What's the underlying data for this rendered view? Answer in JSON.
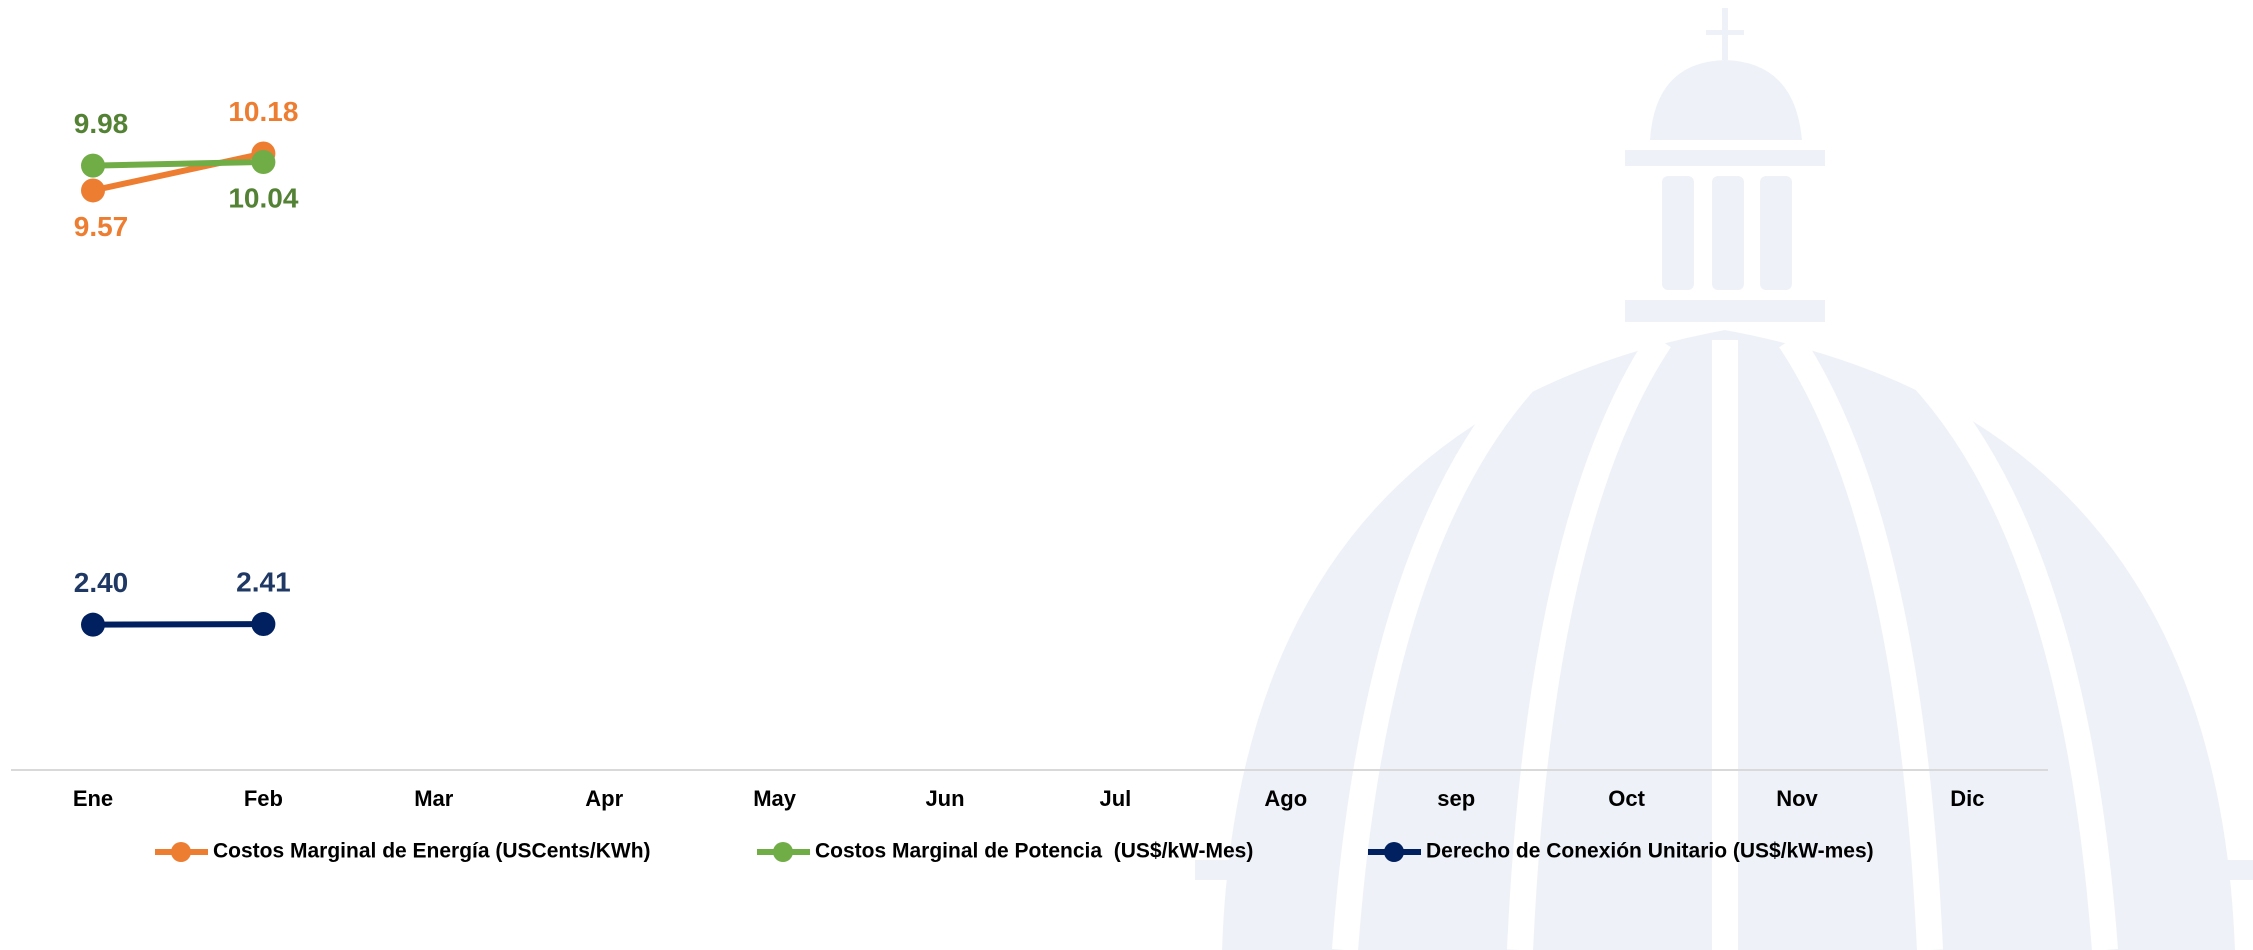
{
  "chart_data": {
    "type": "line",
    "categories": [
      "Ene",
      "Feb",
      "Mar",
      "Apr",
      "May",
      "Jun",
      "Jul",
      "Ago",
      "sep",
      "Oct",
      "Nov",
      "Dic"
    ],
    "ylim": [
      0,
      12.5
    ],
    "series": [
      {
        "name": "Costos Marginal de Energía (USCents/KWh)",
        "color": "#ed7d31",
        "label_color": "#ed7d31",
        "values": [
          9.57,
          10.18,
          null,
          null,
          null,
          null,
          null,
          null,
          null,
          null,
          null,
          null
        ],
        "value_labels": [
          "9.57",
          "10.18",
          null,
          null,
          null,
          null,
          null,
          null,
          null,
          null,
          null,
          null
        ]
      },
      {
        "name": "Costos Marginal de Potencia  (US$/kW-Mes)",
        "color": "#70ad47",
        "label_color": "#548235",
        "values": [
          9.98,
          10.04,
          null,
          null,
          null,
          null,
          null,
          null,
          null,
          null,
          null,
          null
        ],
        "value_labels": [
          "9.98",
          "10.04",
          null,
          null,
          null,
          null,
          null,
          null,
          null,
          null,
          null,
          null
        ]
      },
      {
        "name": "Derecho de Conexión Unitario (US$/kW-mes)",
        "color": "#002060",
        "label_color": "#1f3864",
        "values": [
          2.4,
          2.41,
          null,
          null,
          null,
          null,
          null,
          null,
          null,
          null,
          null,
          null
        ],
        "value_labels": [
          "2.40",
          "2.41",
          null,
          null,
          null,
          null,
          null,
          null,
          null,
          null,
          null,
          null
        ]
      }
    ]
  }
}
